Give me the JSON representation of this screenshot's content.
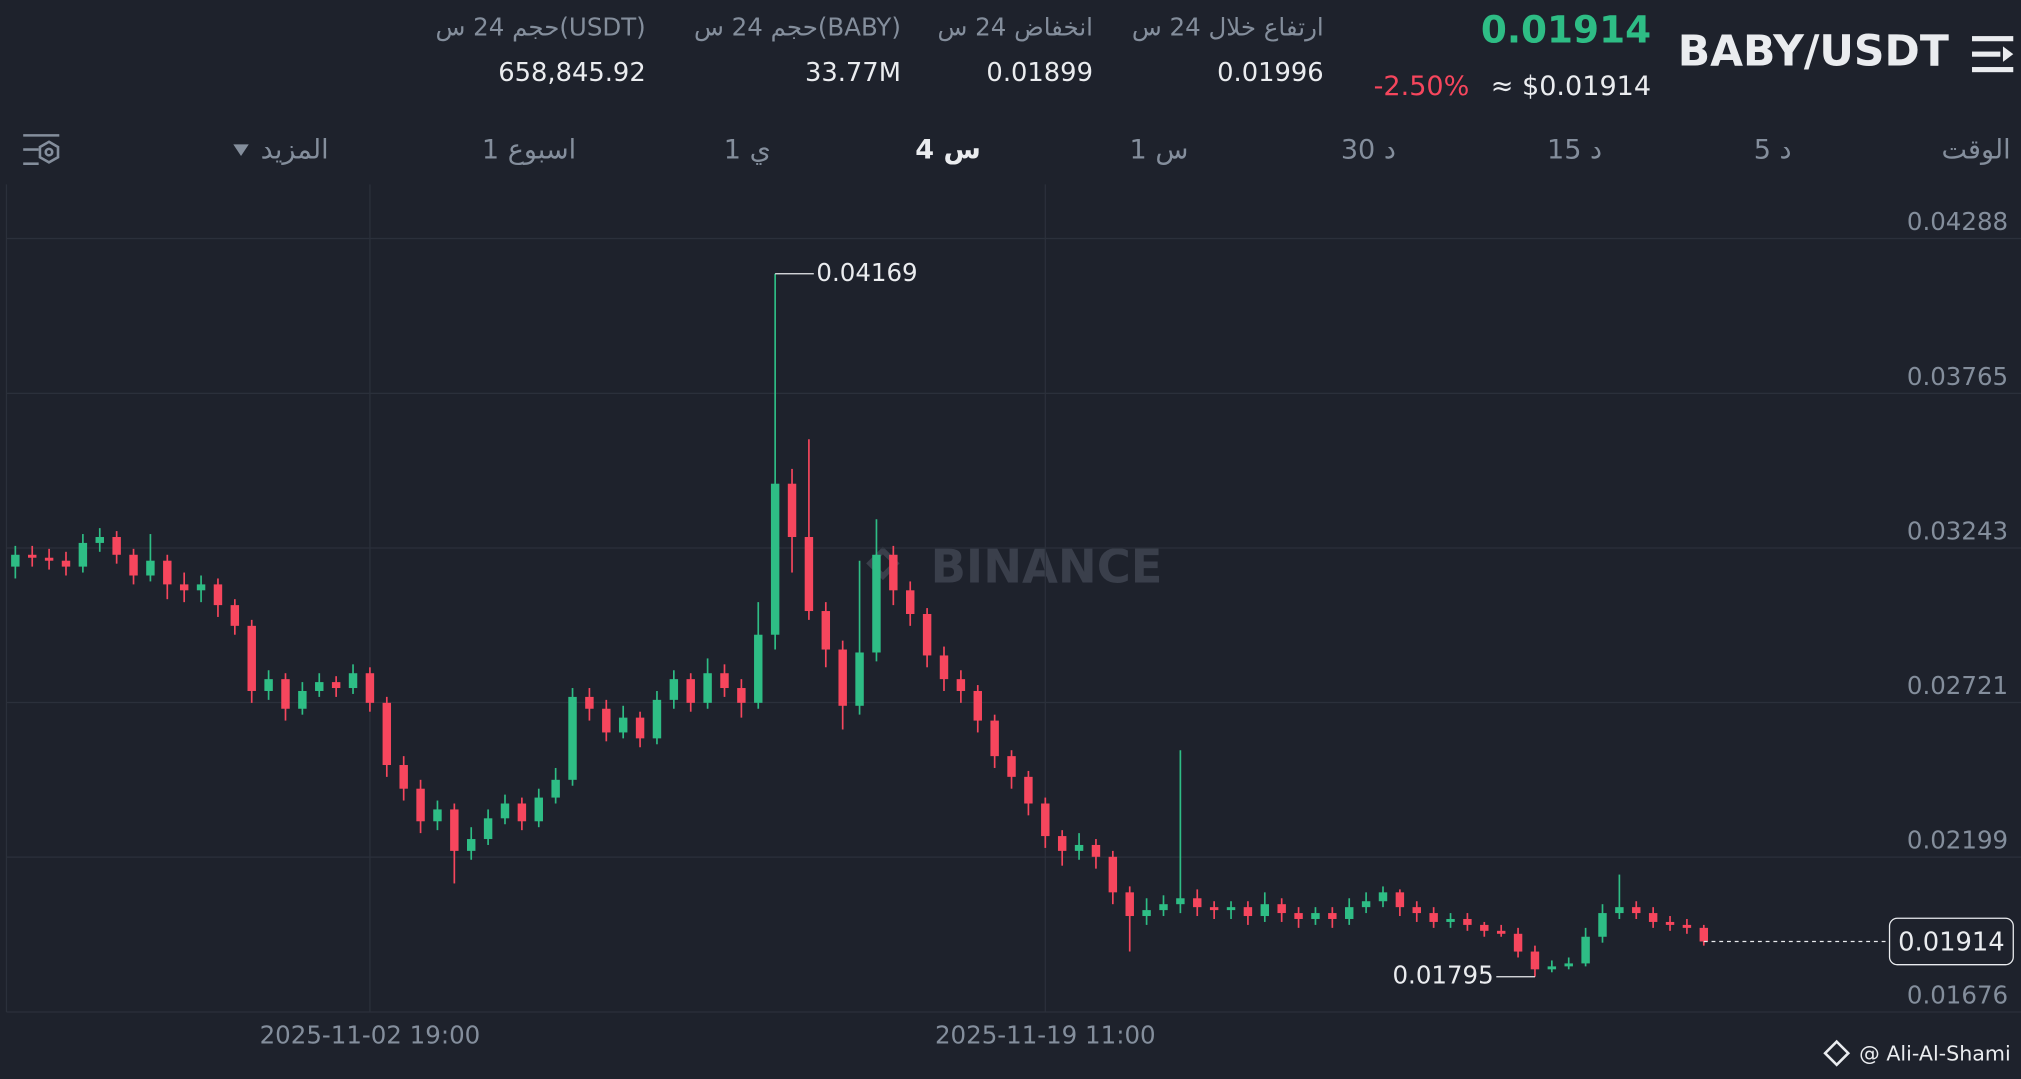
{
  "header": {
    "pair": "BABY/USDT",
    "last_price": "0.01914",
    "usd_price": "≈ $0.01914",
    "change": "-2.50%",
    "stats": [
      {
        "label": "ارتفاع خلال 24 س",
        "value": "0.01996"
      },
      {
        "label": "انخفاض 24 س",
        "value": "0.01899"
      },
      {
        "label": "حجم 24 س(BABY)",
        "value": "33.77M"
      },
      {
        "label": "حجم 24 س(USDT)",
        "value": "658,845.92"
      }
    ]
  },
  "tabs": [
    "الوقت",
    "5 د",
    "15 د",
    "30 د",
    "1 س",
    "4 س",
    "1 ي",
    "1 اسبوع",
    "المزيد"
  ],
  "active_tab": 5,
  "watermark": "BINANCE",
  "footer": "@ Ali-Al-Shami",
  "chart_data": {
    "type": "candlestick",
    "up_color": "#2ebd85",
    "down_color": "#f6465d",
    "grid": true,
    "ylim": [
      0.01676,
      0.04471
    ],
    "yticks": [
      0.04288,
      0.03765,
      0.03243,
      0.02721,
      0.02199,
      0.01676
    ],
    "categories": [
      null,
      null,
      null,
      null,
      null,
      null,
      null,
      null,
      null,
      null,
      null,
      null,
      null,
      null,
      null,
      null,
      null,
      null,
      null,
      null,
      null,
      "2025-11-02 19:00",
      null,
      null,
      null,
      null,
      null,
      null,
      null,
      null,
      null,
      null,
      null,
      null,
      null,
      null,
      null,
      null,
      null,
      null,
      null,
      null,
      null,
      null,
      null,
      null,
      null,
      null,
      null,
      null,
      null,
      null,
      null,
      null,
      null,
      null,
      null,
      null,
      null,
      null,
      null,
      "2025-11-19 11:00",
      null,
      null,
      null,
      null,
      null,
      null,
      null,
      null,
      null,
      null,
      null,
      null,
      null,
      null,
      null,
      null,
      null,
      null,
      null,
      null,
      null,
      null,
      null,
      null,
      null,
      null,
      null,
      null,
      null,
      null,
      null,
      null,
      null,
      null,
      null,
      null,
      null,
      null,
      null
    ],
    "open": [
      0.0318,
      0.0322,
      0.0321,
      0.032,
      0.0318,
      0.0326,
      0.0328,
      0.0322,
      0.0315,
      0.032,
      0.0312,
      0.031,
      0.0312,
      0.0305,
      0.0298,
      0.0276,
      0.028,
      0.027,
      0.0276,
      0.0279,
      0.0277,
      0.0282,
      0.0272,
      0.0251,
      0.0243,
      0.0232,
      0.0236,
      0.0222,
      0.0226,
      0.0233,
      0.0238,
      0.0232,
      0.024,
      0.0246,
      0.0274,
      0.027,
      0.0262,
      0.0267,
      0.026,
      0.0273,
      0.028,
      0.0272,
      0.0282,
      0.0277,
      0.0272,
      0.0295,
      0.0346,
      0.0328,
      0.0303,
      0.029,
      0.0271,
      0.0289,
      0.0322,
      0.031,
      0.0302,
      0.0288,
      0.028,
      0.0276,
      0.0266,
      0.0254,
      0.0247,
      0.0238,
      0.0227,
      0.0222,
      0.0224,
      0.022,
      0.0208,
      0.02,
      0.0202,
      0.0204,
      0.0206,
      0.0203,
      0.0202,
      0.0203,
      0.02,
      0.0204,
      0.0201,
      0.0199,
      0.0201,
      0.0199,
      0.0203,
      0.0205,
      0.0208,
      0.0203,
      0.0201,
      0.0198,
      0.0199,
      0.0197,
      0.0195,
      0.0194,
      0.0188,
      0.0182,
      0.0183,
      0.0184,
      0.0193,
      0.0201,
      0.0203,
      0.0201,
      0.0198,
      0.0197,
      0.0196
    ],
    "high": [
      0.0325,
      0.0325,
      0.0324,
      0.0323,
      0.0329,
      0.0331,
      0.033,
      0.0324,
      0.0329,
      0.0322,
      0.0316,
      0.0315,
      0.0314,
      0.0307,
      0.03,
      0.0283,
      0.0282,
      0.0279,
      0.0282,
      0.0281,
      0.0285,
      0.0284,
      0.0274,
      0.0254,
      0.0246,
      0.0239,
      0.0238,
      0.023,
      0.0236,
      0.0241,
      0.024,
      0.0243,
      0.025,
      0.0277,
      0.0277,
      0.0273,
      0.0271,
      0.0269,
      0.0276,
      0.0283,
      0.0282,
      0.0287,
      0.0285,
      0.028,
      0.0306,
      0.04169,
      0.0351,
      0.0361,
      0.0306,
      0.0293,
      0.032,
      0.0334,
      0.0325,
      0.0313,
      0.0304,
      0.0291,
      0.0283,
      0.0278,
      0.0268,
      0.0256,
      0.0249,
      0.024,
      0.0229,
      0.0228,
      0.0226,
      0.0222,
      0.021,
      0.0206,
      0.0207,
      0.0256,
      0.0209,
      0.0205,
      0.0205,
      0.0205,
      0.0208,
      0.0206,
      0.0203,
      0.0203,
      0.0203,
      0.0206,
      0.0208,
      0.021,
      0.0209,
      0.0205,
      0.0203,
      0.0201,
      0.0201,
      0.0198,
      0.0197,
      0.0196,
      0.019,
      0.0185,
      0.0186,
      0.0196,
      0.0204,
      0.0214,
      0.0205,
      0.0203,
      0.02,
      0.0199,
      0.0197
    ],
    "low": [
      0.0314,
      0.0318,
      0.0317,
      0.0315,
      0.0316,
      0.0323,
      0.0319,
      0.0312,
      0.0313,
      0.0307,
      0.0306,
      0.0306,
      0.0301,
      0.0295,
      0.0272,
      0.0273,
      0.0266,
      0.0268,
      0.0274,
      0.0274,
      0.0275,
      0.0269,
      0.0247,
      0.0239,
      0.0228,
      0.0229,
      0.0211,
      0.0219,
      0.0224,
      0.0231,
      0.0229,
      0.023,
      0.0238,
      0.0244,
      0.0266,
      0.0259,
      0.026,
      0.0257,
      0.0258,
      0.027,
      0.0269,
      0.027,
      0.0274,
      0.0267,
      0.027,
      0.029,
      0.0316,
      0.03,
      0.0284,
      0.0263,
      0.0268,
      0.0286,
      0.0305,
      0.0298,
      0.0284,
      0.0276,
      0.0272,
      0.0262,
      0.025,
      0.0243,
      0.0234,
      0.0223,
      0.0217,
      0.0219,
      0.0216,
      0.0204,
      0.0188,
      0.0197,
      0.02,
      0.0201,
      0.02,
      0.0199,
      0.0199,
      0.0197,
      0.0198,
      0.0198,
      0.0196,
      0.0197,
      0.0196,
      0.0197,
      0.0201,
      0.0203,
      0.02,
      0.0198,
      0.0196,
      0.0196,
      0.0195,
      0.0193,
      0.0193,
      0.0186,
      0.01795,
      0.0181,
      0.0182,
      0.0183,
      0.0191,
      0.0199,
      0.0199,
      0.0196,
      0.0195,
      0.0194,
      0.019
    ],
    "close": [
      0.0322,
      0.0321,
      0.032,
      0.0318,
      0.0326,
      0.0328,
      0.0322,
      0.0315,
      0.032,
      0.0312,
      0.031,
      0.0312,
      0.0305,
      0.0298,
      0.0276,
      0.028,
      0.027,
      0.0276,
      0.0279,
      0.0277,
      0.0282,
      0.0272,
      0.0251,
      0.0243,
      0.0232,
      0.0236,
      0.0222,
      0.0226,
      0.0233,
      0.0238,
      0.0232,
      0.024,
      0.0246,
      0.0274,
      0.027,
      0.0262,
      0.0267,
      0.026,
      0.0273,
      0.028,
      0.0272,
      0.0282,
      0.0277,
      0.0272,
      0.0295,
      0.0346,
      0.0328,
      0.0303,
      0.029,
      0.0271,
      0.0289,
      0.0322,
      0.031,
      0.0302,
      0.0288,
      0.028,
      0.0276,
      0.0266,
      0.0254,
      0.0247,
      0.0238,
      0.0227,
      0.0222,
      0.0224,
      0.022,
      0.0208,
      0.02,
      0.0202,
      0.0204,
      0.0206,
      0.0203,
      0.0202,
      0.0203,
      0.02,
      0.0204,
      0.0201,
      0.0199,
      0.0201,
      0.0199,
      0.0203,
      0.0205,
      0.0208,
      0.0203,
      0.0201,
      0.0198,
      0.0199,
      0.0197,
      0.0195,
      0.0194,
      0.0188,
      0.0182,
      0.0183,
      0.0184,
      0.0193,
      0.0201,
      0.0203,
      0.0201,
      0.0198,
      0.0197,
      0.0196,
      0.01914
    ]
  }
}
